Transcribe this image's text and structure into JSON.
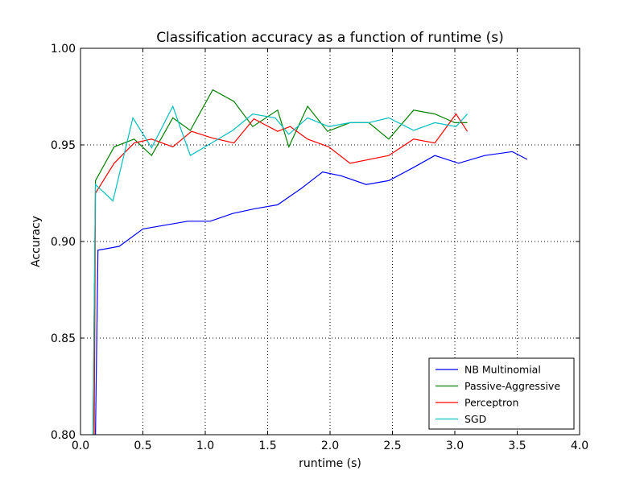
{
  "chart_data": {
    "type": "line",
    "title": "Classification accuracy as a function of runtime (s)",
    "xlabel": "runtime (s)",
    "ylabel": "Accuracy",
    "xlim": [
      0.0,
      4.0
    ],
    "ylim": [
      0.8,
      1.0
    ],
    "xticks": [
      "0.0",
      "0.5",
      "1.0",
      "1.5",
      "2.0",
      "2.5",
      "3.0",
      "3.5",
      "4.0"
    ],
    "yticks": [
      "0.80",
      "0.85",
      "0.90",
      "0.95",
      "1.00"
    ],
    "grid": true,
    "legend_position": "lower-right",
    "series": [
      {
        "name": "NB Multinomial",
        "color": "#0000ff",
        "points": [
          [
            0.12,
            0.8
          ],
          [
            0.14,
            0.8955
          ],
          [
            0.31,
            0.8975
          ],
          [
            0.5,
            0.9065
          ],
          [
            0.86,
            0.9105
          ],
          [
            1.04,
            0.9105
          ],
          [
            1.22,
            0.9145
          ],
          [
            1.4,
            0.917
          ],
          [
            1.58,
            0.919
          ],
          [
            1.77,
            0.9275
          ],
          [
            1.94,
            0.936
          ],
          [
            2.09,
            0.934
          ],
          [
            2.29,
            0.9295
          ],
          [
            2.47,
            0.9315
          ],
          [
            2.66,
            0.938
          ],
          [
            2.84,
            0.9445
          ],
          [
            3.03,
            0.9405
          ],
          [
            3.24,
            0.9445
          ],
          [
            3.46,
            0.9465
          ],
          [
            3.58,
            0.9425
          ]
        ]
      },
      {
        "name": "Passive-Aggressive",
        "color": "#008000",
        "points": [
          [
            0.1,
            0.8
          ],
          [
            0.12,
            0.9315
          ],
          [
            0.27,
            0.949
          ],
          [
            0.43,
            0.953
          ],
          [
            0.57,
            0.9445
          ],
          [
            0.74,
            0.964
          ],
          [
            0.88,
            0.9575
          ],
          [
            1.06,
            0.9785
          ],
          [
            1.23,
            0.9725
          ],
          [
            1.38,
            0.9595
          ],
          [
            1.58,
            0.968
          ],
          [
            1.67,
            0.949
          ],
          [
            1.82,
            0.97
          ],
          [
            1.98,
            0.957
          ],
          [
            2.16,
            0.9615
          ],
          [
            2.31,
            0.9615
          ],
          [
            2.47,
            0.953
          ],
          [
            2.67,
            0.968
          ],
          [
            2.84,
            0.966
          ],
          [
            3.0,
            0.9615
          ],
          [
            3.1,
            0.9615
          ]
        ]
      },
      {
        "name": "Perceptron",
        "color": "#ff0000",
        "points": [
          [
            0.11,
            0.8
          ],
          [
            0.12,
            0.925
          ],
          [
            0.27,
            0.9405
          ],
          [
            0.43,
            0.951
          ],
          [
            0.57,
            0.953
          ],
          [
            0.74,
            0.949
          ],
          [
            0.89,
            0.957
          ],
          [
            1.06,
            0.9535
          ],
          [
            1.23,
            0.951
          ],
          [
            1.39,
            0.9635
          ],
          [
            1.58,
            0.957
          ],
          [
            1.68,
            0.9595
          ],
          [
            1.82,
            0.953
          ],
          [
            1.99,
            0.949
          ],
          [
            2.16,
            0.9405
          ],
          [
            2.47,
            0.9445
          ],
          [
            2.67,
            0.953
          ],
          [
            2.84,
            0.951
          ],
          [
            3.01,
            0.966
          ],
          [
            3.1,
            0.957
          ]
        ]
      },
      {
        "name": "SGD",
        "color": "#00bfbf",
        "points": [
          [
            0.1,
            0.8
          ],
          [
            0.12,
            0.9295
          ],
          [
            0.26,
            0.921
          ],
          [
            0.42,
            0.964
          ],
          [
            0.57,
            0.9485
          ],
          [
            0.74,
            0.97
          ],
          [
            0.88,
            0.9445
          ],
          [
            1.05,
            0.951
          ],
          [
            1.22,
            0.9575
          ],
          [
            1.38,
            0.966
          ],
          [
            1.56,
            0.964
          ],
          [
            1.67,
            0.9555
          ],
          [
            1.82,
            0.964
          ],
          [
            1.99,
            0.9595
          ],
          [
            2.16,
            0.9615
          ],
          [
            2.31,
            0.9615
          ],
          [
            2.47,
            0.964
          ],
          [
            2.67,
            0.9575
          ],
          [
            2.84,
            0.9615
          ],
          [
            3.01,
            0.9595
          ],
          [
            3.1,
            0.966
          ]
        ]
      }
    ]
  }
}
